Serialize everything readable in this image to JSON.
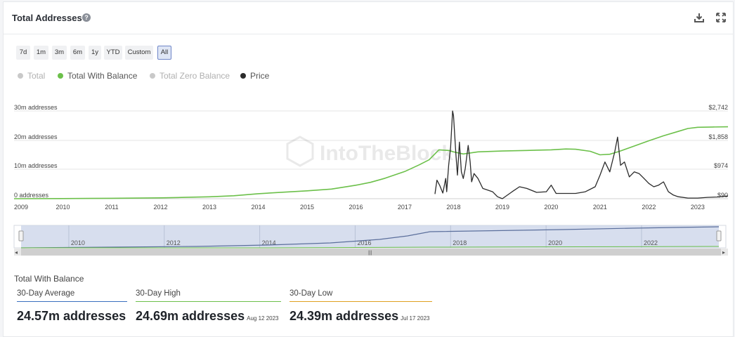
{
  "header": {
    "title": "Total Addresses",
    "help_icon": "question-circle-icon",
    "download_icon": "download-icon",
    "expand_icon": "expand-icon"
  },
  "ranges": [
    "7d",
    "1m",
    "3m",
    "6m",
    "1y",
    "YTD",
    "Custom",
    "All"
  ],
  "active_range": "All",
  "legend": [
    {
      "label": "Total",
      "color": "#c9c9c9",
      "enabled": false
    },
    {
      "label": "Total With Balance",
      "color": "#6cc04a",
      "enabled": true
    },
    {
      "label": "Total Zero Balance",
      "color": "#c9c9c9",
      "enabled": false
    },
    {
      "label": "Price",
      "color": "#2b2b2b",
      "enabled": true
    }
  ],
  "watermark": "IntoTheBlock",
  "chart_data": {
    "type": "line",
    "left_axis": {
      "ticks": [
        "30m addresses",
        "20m addresses",
        "10m addresses",
        "0 addresses"
      ],
      "range": [
        0,
        30000000
      ]
    },
    "right_axis": {
      "ticks": [
        "$2,742",
        "$1,858",
        "$974",
        "$90"
      ],
      "range": [
        90,
        2742
      ]
    },
    "x_ticks": [
      "2009",
      "2010",
      "2011",
      "2012",
      "2013",
      "2014",
      "2015",
      "2016",
      "2017",
      "2018",
      "2019",
      "2020",
      "2021",
      "2022",
      "2023"
    ],
    "x_range": [
      2009.0,
      2023.62
    ],
    "series": [
      {
        "name": "Total With Balance",
        "axis": "left",
        "color": "#6cc04a",
        "x": [
          2009.0,
          2010.0,
          2011.0,
          2012.0,
          2012.5,
          2013.0,
          2013.5,
          2014.0,
          2014.5,
          2015.0,
          2015.5,
          2016.0,
          2016.3,
          2016.6,
          2017.0,
          2017.3,
          2017.5,
          2017.7,
          2017.9,
          2018.0,
          2018.2,
          2018.5,
          2019.0,
          2019.5,
          2020.0,
          2020.3,
          2020.5,
          2020.8,
          2021.0,
          2021.2,
          2021.4,
          2021.7,
          2022.0,
          2022.3,
          2022.6,
          2022.8,
          2023.0,
          2023.3,
          2023.62
        ],
        "y": [
          0,
          50000,
          150000,
          300000,
          450000,
          650000,
          1000000,
          1700000,
          2200000,
          2700000,
          3300000,
          4600000,
          5600000,
          7000000,
          9300000,
          11600000,
          13300000,
          16700000,
          16500000,
          16000000,
          15300000,
          16000000,
          16300000,
          16500000,
          16700000,
          17000000,
          16900000,
          16200000,
          15000000,
          15200000,
          16200000,
          18000000,
          19800000,
          21500000,
          23000000,
          24000000,
          24400000,
          24500000,
          24570000
        ]
      },
      {
        "name": "Price",
        "axis": "right",
        "color": "#2b2b2b",
        "x": [
          2017.62,
          2017.66,
          2017.72,
          2017.78,
          2017.84,
          2017.86,
          2017.9,
          2017.94,
          2017.96,
          2017.98,
          2018.0,
          2018.05,
          2018.08,
          2018.12,
          2018.16,
          2018.2,
          2018.24,
          2018.3,
          2018.34,
          2018.37,
          2018.42,
          2018.5,
          2018.6,
          2018.7,
          2018.8,
          2018.9,
          2019.0,
          2019.2,
          2019.35,
          2019.5,
          2019.7,
          2019.9,
          2020.0,
          2020.1,
          2020.2,
          2020.35,
          2020.5,
          2020.7,
          2020.9,
          2021.0,
          2021.1,
          2021.2,
          2021.3,
          2021.36,
          2021.42,
          2021.5,
          2021.6,
          2021.7,
          2021.8,
          2021.9,
          2022.0,
          2022.1,
          2022.2,
          2022.3,
          2022.4,
          2022.5,
          2022.6,
          2022.8,
          2023.0,
          2023.2,
          2023.4,
          2023.62
        ],
        "y": [
          230,
          650,
          480,
          260,
          700,
          300,
          1100,
          1650,
          2200,
          2742,
          2600,
          1400,
          800,
          1800,
          900,
          700,
          1000,
          1700,
          1200,
          600,
          850,
          700,
          400,
          350,
          300,
          150,
          90,
          300,
          450,
          400,
          280,
          300,
          500,
          250,
          250,
          250,
          250,
          300,
          450,
          800,
          1200,
          900,
          1500,
          1950,
          1100,
          1200,
          750,
          900,
          850,
          700,
          550,
          450,
          500,
          600,
          300,
          200,
          150,
          110,
          110,
          130,
          140,
          170
        ]
      }
    ]
  },
  "navigator": {
    "ticks": [
      "2010",
      "2012",
      "2014",
      "2016",
      "2018",
      "2020",
      "2022"
    ],
    "scroll_icon": "scroll-grip-icon"
  },
  "stats": {
    "title": "Total With Balance",
    "items": [
      {
        "label": "30-Day Average",
        "value": "24.57m addresses",
        "date": "",
        "color": "#3a6fbf"
      },
      {
        "label": "30-Day High",
        "value": "24.69m addresses",
        "date": "Aug 12 2023",
        "color": "#6cc04a"
      },
      {
        "label": "30-Day Low",
        "value": "24.39m addresses",
        "date": "Jul 17 2023",
        "color": "#e0a020"
      }
    ]
  }
}
